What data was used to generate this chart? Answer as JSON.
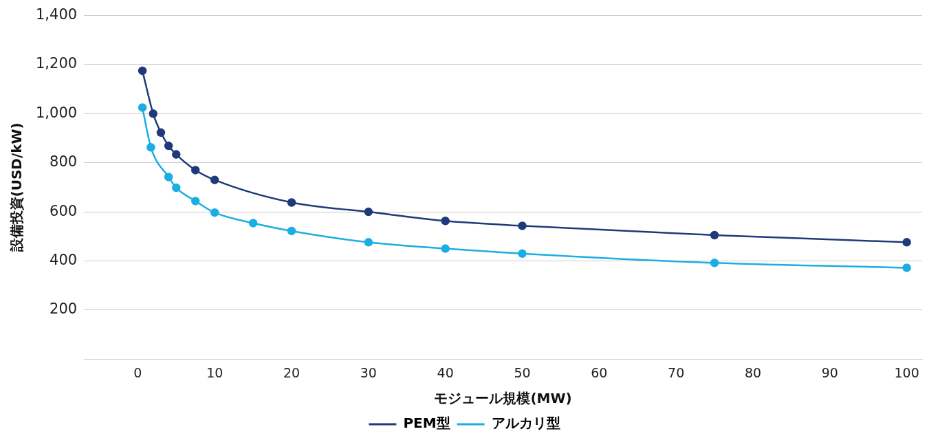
{
  "chart_data": {
    "type": "line",
    "xlabel": "モジュール規模(MW)",
    "ylabel": "設備投資(USD/kW)",
    "xlim": [
      -7,
      102
    ],
    "xticks": [
      0,
      10,
      20,
      30,
      40,
      50,
      60,
      70,
      80,
      90,
      100
    ],
    "ylim": [
      0,
      1400
    ],
    "yticks": [
      {
        "value": 0,
        "label": null
      },
      200,
      400,
      600,
      800,
      {
        "value": 1000,
        "label": "1,000"
      },
      {
        "value": 1200,
        "label": "1,200"
      },
      {
        "value": 1400,
        "label": "1,400"
      }
    ],
    "grid": "y",
    "legend": "bottom",
    "marker": "circle",
    "line_style": "solid",
    "series": [
      {
        "name": "PEM型",
        "color": "#1f3a7a",
        "x": [
          0.6,
          2,
          3,
          4,
          5,
          7.5,
          10,
          20,
          30,
          40,
          50,
          75,
          100
        ],
        "values": [
          1175,
          1000,
          923,
          869,
          834,
          770,
          730,
          638,
          600,
          563,
          543,
          505,
          476
        ]
      },
      {
        "name": "アルカリ型",
        "color": "#1aaee2",
        "x": [
          0.6,
          1.7,
          4,
          5,
          7.5,
          10,
          15,
          20,
          30,
          40,
          50,
          75,
          100
        ],
        "values": [
          1025,
          863,
          742,
          698,
          644,
          597,
          554,
          522,
          476,
          450,
          430,
          392,
          372
        ]
      }
    ]
  }
}
